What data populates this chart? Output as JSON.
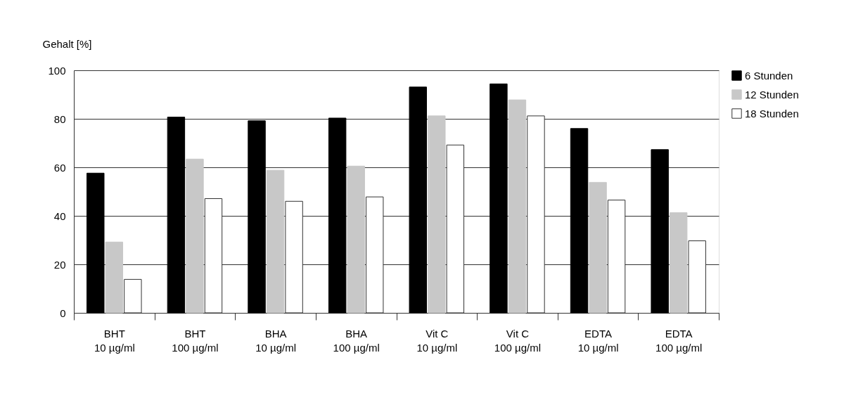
{
  "chart_data": {
    "type": "bar",
    "ylabel": "Gehalt [%]",
    "categories": [
      "BHT\n10 µg/ml",
      "BHT\n100 µg/ml",
      "BHA\n10 µg/ml",
      "BHA\n100 µg/ml",
      "Vit C\n10 µg/ml",
      "Vit C\n100 µg/ml",
      "EDTA\n10 µg/ml",
      "EDTA\n100 µg/ml"
    ],
    "series": [
      {
        "name": "6 Stunden",
        "color": "#000000",
        "values": [
          57.6,
          80.7,
          79.2,
          80.3,
          93.1,
          94.4,
          76.0,
          67.3
        ]
      },
      {
        "name": "12 Stunden",
        "color": "#c8c8c8",
        "values": [
          29.2,
          63.4,
          58.8,
          60.5,
          81.2,
          87.8,
          53.8,
          41.3
        ]
      },
      {
        "name": "18 Stunden",
        "color": "#ffffff",
        "values": [
          13.8,
          47.1,
          46.0,
          47.8,
          69.2,
          81.2,
          46.5,
          29.7
        ]
      }
    ],
    "ylim": [
      0,
      100
    ],
    "yticks": [
      0,
      20,
      40,
      60,
      80,
      100
    ],
    "grid": "y",
    "legend": "right"
  }
}
